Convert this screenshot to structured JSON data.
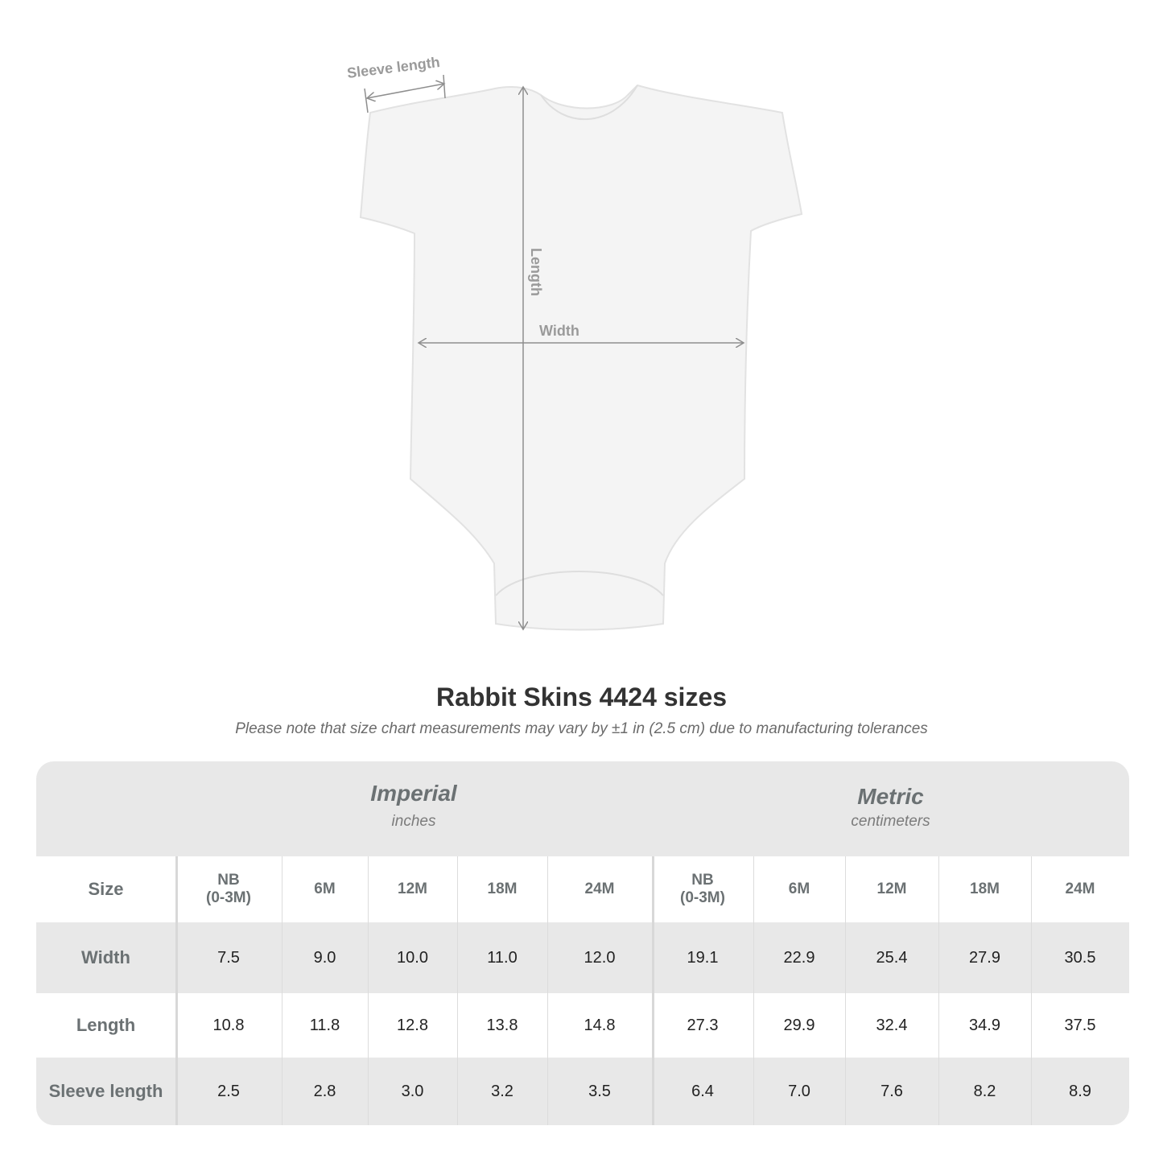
{
  "diagram": {
    "labels": {
      "sleeve_length": "Sleeve length",
      "length": "Length",
      "width": "Width"
    },
    "garment_color": "#f4f4f4",
    "measure_line_color": "#8e8e8e"
  },
  "title": "Rabbit Skins 4424 sizes",
  "subtitle": "Please note that size chart measurements may vary by ±1 in (2.5 cm) due to manufacturing tolerances",
  "table": {
    "imperial": {
      "name": "Imperial",
      "unit": "inches"
    },
    "metric": {
      "name": "Metric",
      "unit": "centimeters"
    },
    "size_label": "Size",
    "sizes_imperial": [
      "NB\n(0-3M)",
      "6M",
      "12M",
      "18M",
      "24M"
    ],
    "sizes_metric": [
      "NB\n(0-3M)",
      "6M",
      "12M",
      "18M",
      "24M"
    ],
    "rows": [
      {
        "label": "Width",
        "imperial": [
          "7.5",
          "9.0",
          "10.0",
          "11.0",
          "12.0"
        ],
        "metric": [
          "19.1",
          "22.9",
          "25.4",
          "27.9",
          "30.5"
        ]
      },
      {
        "label": "Length",
        "imperial": [
          "10.8",
          "11.8",
          "12.8",
          "13.8",
          "14.8"
        ],
        "metric": [
          "27.3",
          "29.9",
          "32.4",
          "34.9",
          "37.5"
        ]
      },
      {
        "label": "Sleeve length",
        "imperial": [
          "2.5",
          "2.8",
          "3.0",
          "3.2",
          "3.5"
        ],
        "metric": [
          "6.4",
          "7.0",
          "7.6",
          "8.2",
          "8.9"
        ]
      }
    ],
    "band_color": "#e8e8e8",
    "header_text_color": "#6b7173"
  }
}
